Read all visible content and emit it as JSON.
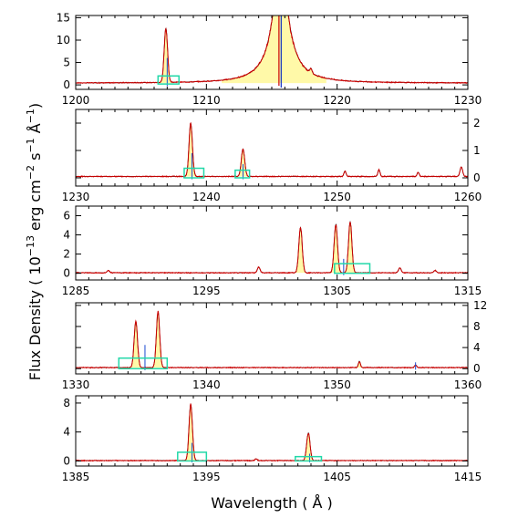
{
  "figure": {
    "ylabel_prefix": "Flux Density  ( 10",
    "ylabel_exp1": "−13",
    "ylabel_mid": " erg cm",
    "ylabel_exp2": "−2",
    "ylabel_mid2": " s",
    "ylabel_exp3": "−1",
    "ylabel_mid3": " Å",
    "ylabel_exp4": "−1",
    "ylabel_suffix": ")",
    "xlabel": "Wavelength  ( Å )"
  },
  "chart_data": [
    {
      "type": "line",
      "xlim": [
        1200,
        1230
      ],
      "ylim": [
        -1,
        15.5
      ],
      "xticks": [
        "1200",
        "1210",
        "1220",
        "1230"
      ],
      "yticks": [
        "0",
        "5",
        "10",
        "15"
      ],
      "ytick_side": "left",
      "baseline": 0.4,
      "lines": [
        [
          1206.9,
          12.1,
          0.13
        ],
        [
          1218.0,
          1.0,
          0.08
        ]
      ],
      "lya": {
        "center": 1215.67,
        "peak": 15.5,
        "width": 0.7,
        "wing": 1.2
      },
      "boxes": [
        [
          1206.3,
          1207.9,
          0.2,
          2.0
        ]
      ],
      "blue": [
        [
          1207.0,
          -0.3,
          6.0
        ]
      ]
    },
    {
      "type": "line",
      "xlim": [
        1230,
        1260
      ],
      "ylim": [
        -0.3,
        2.5
      ],
      "xticks": [
        "1230",
        "1240",
        "1250",
        "1260"
      ],
      "yticks": [
        "0",
        "1",
        "2"
      ],
      "ytick_side": "right",
      "baseline": 0.05,
      "lines": [
        [
          1238.8,
          1.95,
          0.13
        ],
        [
          1242.8,
          1.0,
          0.13
        ],
        [
          1250.6,
          0.2,
          0.08
        ],
        [
          1253.2,
          0.25,
          0.08
        ],
        [
          1256.2,
          0.15,
          0.08
        ],
        [
          1259.5,
          0.35,
          0.1
        ]
      ],
      "boxes": [
        [
          1238.3,
          1239.8,
          0.0,
          0.35
        ],
        [
          1242.2,
          1243.3,
          0.0,
          0.28
        ]
      ],
      "blue": [
        [
          1238.9,
          -0.05,
          0.9
        ],
        [
          1242.8,
          -0.05,
          0.5
        ]
      ]
    },
    {
      "type": "line",
      "xlim": [
        1285,
        1315
      ],
      "ylim": [
        -0.7,
        7
      ],
      "xticks": [
        "1285",
        "1295",
        "1305",
        "1315"
      ],
      "yticks": [
        "0",
        "2",
        "4",
        "6"
      ],
      "ytick_side": "left",
      "baseline": 0.05,
      "lines": [
        [
          1287.5,
          0.25,
          0.1
        ],
        [
          1299.0,
          0.6,
          0.1
        ],
        [
          1302.2,
          4.7,
          0.13
        ],
        [
          1304.9,
          5.0,
          0.13
        ],
        [
          1306.0,
          5.3,
          0.13
        ],
        [
          1309.8,
          0.5,
          0.1
        ],
        [
          1312.5,
          0.25,
          0.1
        ]
      ],
      "boxes": [
        [
          1304.8,
          1307.5,
          0.0,
          1.0
        ]
      ],
      "blue": [
        [
          1305.5,
          -0.2,
          1.5
        ]
      ]
    },
    {
      "type": "line",
      "xlim": [
        1330,
        1360
      ],
      "ylim": [
        -1,
        12.5
      ],
      "xticks": [
        "1330",
        "1340",
        "1350",
        "1360"
      ],
      "yticks": [
        "0",
        "4",
        "8",
        "12"
      ],
      "ytick_side": "right",
      "baseline": 0.2,
      "lines": [
        [
          1334.6,
          8.7,
          0.13
        ],
        [
          1336.3,
          10.4,
          0.13
        ],
        [
          1351.7,
          1.2,
          0.08
        ],
        [
          1356.0,
          0.5,
          0.08
        ]
      ],
      "boxes": [
        [
          1333.3,
          1337.0,
          0.0,
          2.0
        ]
      ],
      "blue": [
        [
          1335.3,
          -0.3,
          4.5
        ],
        [
          1356.0,
          -0.2,
          1.2
        ]
      ]
    },
    {
      "type": "line",
      "xlim": [
        1385,
        1415
      ],
      "ylim": [
        -0.7,
        9
      ],
      "xticks": [
        "1385",
        "1395",
        "1405",
        "1415"
      ],
      "yticks": [
        "0",
        "4",
        "8"
      ],
      "ytick_side": "left",
      "baseline": 0.05,
      "lines": [
        [
          1393.8,
          7.8,
          0.13
        ],
        [
          1398.8,
          0.25,
          0.08
        ],
        [
          1402.8,
          3.8,
          0.13
        ]
      ],
      "boxes": [
        [
          1392.8,
          1395.0,
          0.0,
          1.2
        ],
        [
          1401.8,
          1403.8,
          0.0,
          0.6
        ]
      ],
      "blue": [
        [
          1393.9,
          -0.2,
          2.5
        ],
        [
          1402.9,
          -0.2,
          1.0
        ]
      ]
    }
  ]
}
